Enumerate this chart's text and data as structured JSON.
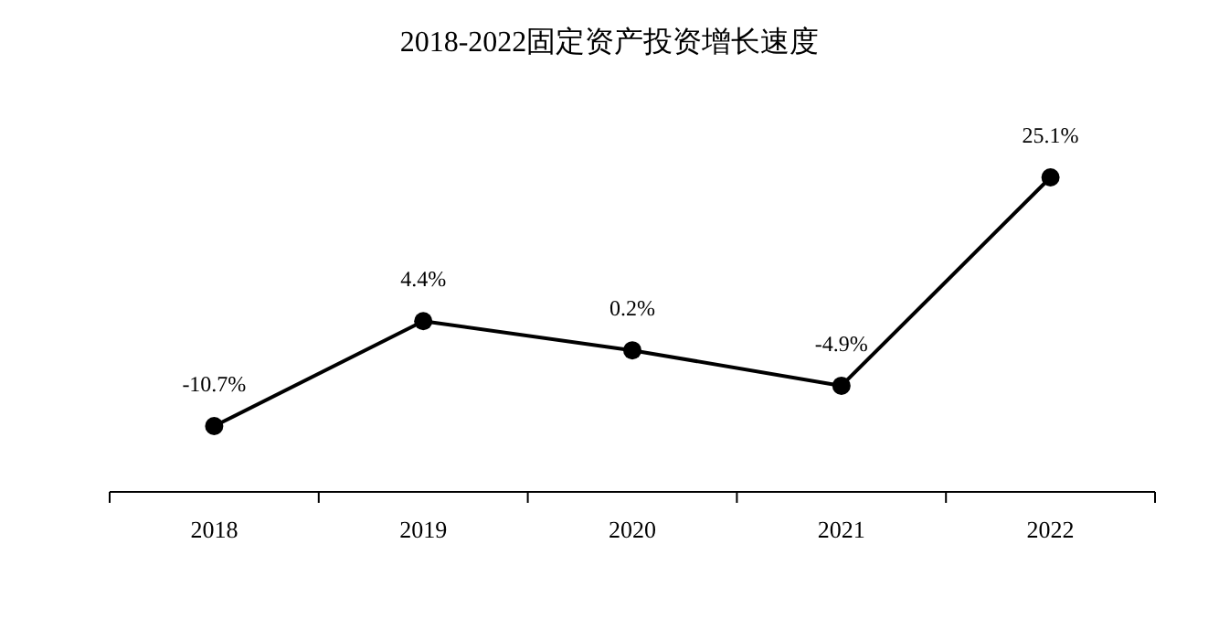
{
  "chart_data": {
    "type": "line",
    "title": "2018-2022固定资产投资增长速度",
    "categories": [
      "2018",
      "2019",
      "2020",
      "2021",
      "2022"
    ],
    "series": [
      {
        "color": "#000000",
        "values": [
          -10.7,
          4.4,
          0.2,
          -4.9,
          25.1
        ],
        "value_labels": [
          "-10.7%",
          "4.4%",
          "0.2%",
          "-4.9%",
          "25.1%"
        ]
      }
    ],
    "marker": "circle",
    "line_style": "solid"
  }
}
